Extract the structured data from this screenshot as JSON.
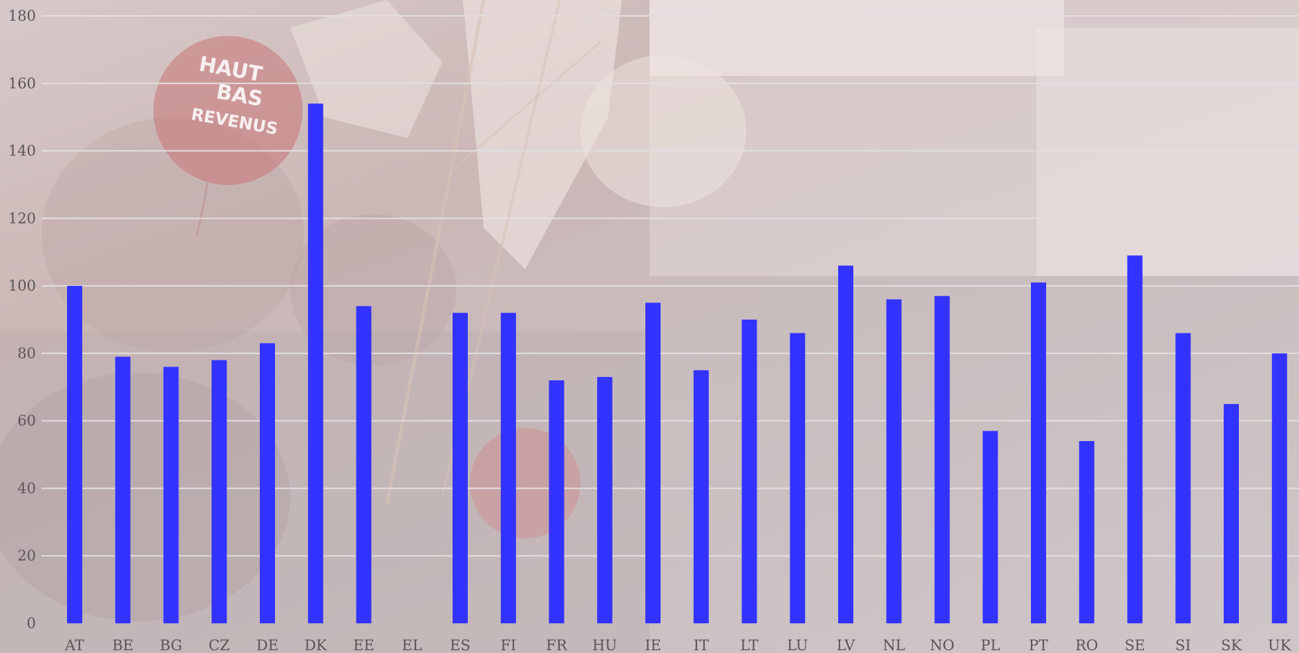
{
  "chart_data": {
    "type": "bar",
    "title": "",
    "xlabel": "",
    "ylabel": "",
    "categories": [
      "AT",
      "BE",
      "BG",
      "CZ",
      "DE",
      "DK",
      "EE",
      "EL",
      "ES",
      "FI",
      "FR",
      "HU",
      "IE",
      "IT",
      "LT",
      "LU",
      "LV",
      "NL",
      "NO",
      "PL",
      "PT",
      "RO",
      "SE",
      "SI",
      "SK",
      "UK"
    ],
    "values": [
      100,
      79,
      76,
      78,
      83,
      154,
      94,
      null,
      92,
      92,
      72,
      73,
      95,
      75,
      90,
      86,
      106,
      96,
      97,
      57,
      101,
      54,
      109,
      86,
      65,
      80
    ],
    "ylim": [
      0,
      180
    ],
    "yticks": [
      0,
      20,
      40,
      60,
      80,
      100,
      120,
      140,
      160,
      180
    ],
    "grid": "horizontal",
    "legend": "none",
    "colors": {
      "bar": "#3333ff",
      "grid": "#e2dfe1",
      "tick_text": "#5b5557"
    },
    "background": {
      "type": "faded-photo",
      "balloon_text": [
        "HAUT",
        "BAS",
        "REVENUS"
      ]
    }
  }
}
